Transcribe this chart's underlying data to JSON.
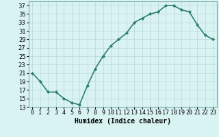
{
  "x": [
    0,
    1,
    2,
    3,
    4,
    5,
    6,
    7,
    8,
    9,
    10,
    11,
    12,
    13,
    14,
    15,
    16,
    17,
    18,
    19,
    20,
    21,
    22,
    23
  ],
  "y": [
    21,
    19,
    16.5,
    16.5,
    15,
    14,
    13.5,
    18,
    22,
    25,
    27.5,
    29,
    30.5,
    33,
    34,
    35,
    35.5,
    37,
    37,
    36,
    35.5,
    32.5,
    30,
    29
  ],
  "line_color": "#2e7d6e",
  "marker_color": "#2e7d6e",
  "bg_color": "#d9f2f2",
  "grid_color": "#b8d8d8",
  "spine_color": "#7aabab",
  "xlabel": "Humidex (Indice chaleur)",
  "ylim": [
    13,
    38
  ],
  "xlim": [
    -0.5,
    23.5
  ],
  "yticks": [
    13,
    15,
    17,
    19,
    21,
    23,
    25,
    27,
    29,
    31,
    33,
    35,
    37
  ],
  "xticks": [
    0,
    1,
    2,
    3,
    4,
    5,
    6,
    7,
    8,
    9,
    10,
    11,
    12,
    13,
    14,
    15,
    16,
    17,
    18,
    19,
    20,
    21,
    22,
    23
  ],
  "xtick_labels": [
    "0",
    "1",
    "2",
    "3",
    "4",
    "5",
    "6",
    "7",
    "8",
    "9",
    "10",
    "11",
    "12",
    "13",
    "14",
    "15",
    "16",
    "17",
    "18",
    "19",
    "20",
    "21",
    "22",
    "23"
  ],
  "xlabel_fontsize": 7.0,
  "tick_fontsize": 6.0,
  "linewidth": 1.2,
  "markersize": 2.2
}
